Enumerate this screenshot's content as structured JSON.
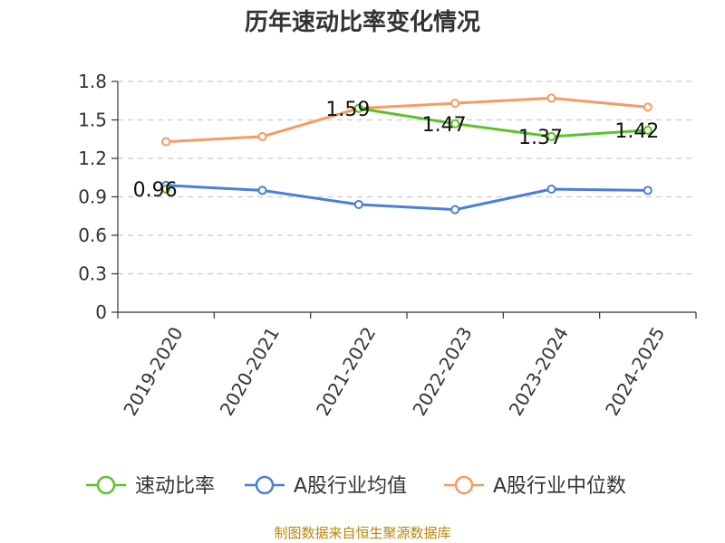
{
  "chart_data": {
    "type": "line",
    "title": "历年速动比率变化情况",
    "categories": [
      "2019-2020",
      "2020-2021",
      "2021-2022",
      "2022-2023",
      "2023-2024",
      "2024-2025"
    ],
    "ylim": [
      0,
      1.8
    ],
    "yticks": [
      "0",
      "0.3",
      "0.6",
      "0.9",
      "1.2",
      "1.5",
      "1.8"
    ],
    "grid": true,
    "legend_position": "bottom",
    "series": [
      {
        "name": "速动比率",
        "color": "#5cc22b",
        "values": [
          0.96,
          null,
          1.59,
          1.47,
          1.37,
          1.42
        ],
        "labels": [
          "0.96",
          "",
          "1.59",
          "1.47",
          "1.37",
          "1.42"
        ]
      },
      {
        "name": "A股行业均值",
        "color": "#4a7fd8",
        "values": [
          0.99,
          0.95,
          0.84,
          0.8,
          0.96,
          0.95
        ]
      },
      {
        "name": "A股行业中位数",
        "color": "#f79a64",
        "values": [
          1.33,
          1.37,
          1.59,
          1.63,
          1.67,
          1.6
        ]
      }
    ]
  },
  "source": "制图数据来自恒生聚源数据库"
}
